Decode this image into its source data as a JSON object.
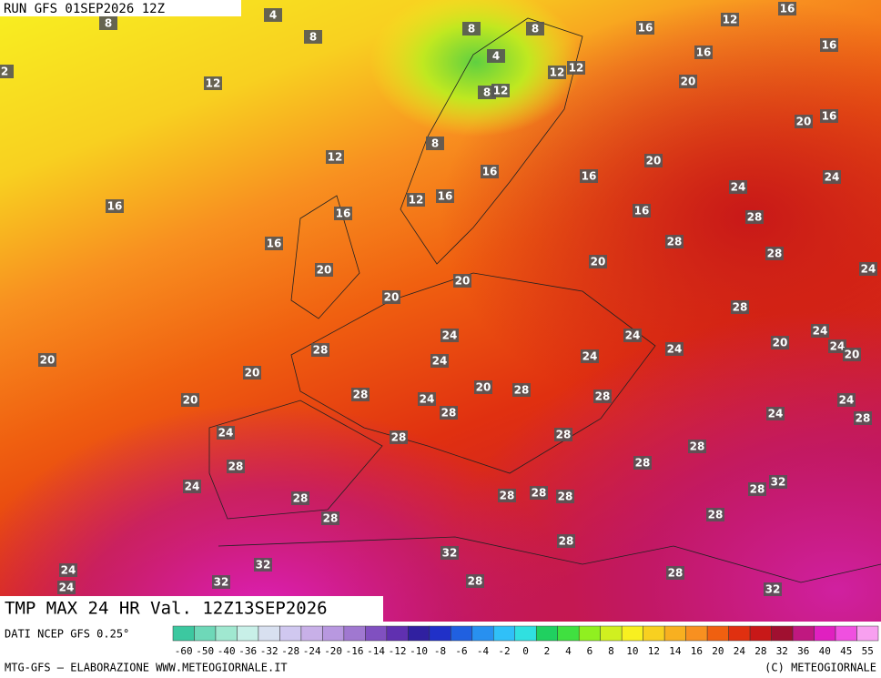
{
  "header": {
    "run": "RUN GFS 01SEP2026 12Z"
  },
  "title": "TMP MAX 24 HR Val. 12Z13SEP2026",
  "source": "DATI NCEP GFS 0.25°",
  "footer_left": "MTG-GFS — ELABORAZIONE WWW.METEOGIORNALE.IT",
  "footer_right": "(C) METEOGIORNALE",
  "colorbar": {
    "labels": [
      -60,
      -50,
      -40,
      -36,
      -32,
      -28,
      -24,
      -20,
      -16,
      -14,
      -12,
      -10,
      -8,
      -6,
      -4,
      -2,
      0,
      2,
      4,
      6,
      8,
      10,
      12,
      14,
      16,
      20,
      24,
      28,
      32,
      36,
      40,
      45,
      55
    ],
    "colors": [
      "#3cc8a0",
      "#6ed8b8",
      "#a0e8d0",
      "#c8f0e8",
      "#d8e0f0",
      "#d0c8f0",
      "#c8b0e8",
      "#b898e0",
      "#a078d0",
      "#8050c0",
      "#6030b0",
      "#3020a0",
      "#2030c8",
      "#2060e0",
      "#2890f0",
      "#30c0f8",
      "#30e0e0",
      "#20d060",
      "#40e040",
      "#90f020",
      "#d0f020",
      "#f8f020",
      "#f8d020",
      "#f8b020",
      "#f89020",
      "#f06010",
      "#e03010",
      "#c81818",
      "#a01030",
      "#c01880",
      "#e020c0",
      "#f050e0",
      "#f8a0f0"
    ]
  },
  "map_labels": [
    4,
    8,
    8,
    8,
    8,
    2,
    12,
    4,
    8,
    12,
    12,
    12,
    12,
    16,
    16,
    16,
    16,
    20,
    20,
    16,
    12,
    8,
    16,
    16,
    20,
    24,
    24,
    12,
    16,
    16,
    16,
    16,
    28,
    16,
    28,
    28,
    24,
    20,
    20,
    20,
    20,
    28,
    24,
    24,
    24,
    20,
    24,
    20,
    28,
    24,
    24,
    20,
    24,
    20,
    28,
    20,
    24,
    20,
    28,
    28,
    24,
    28,
    24,
    28,
    24,
    28,
    28,
    28,
    28,
    28,
    32,
    28,
    24,
    28,
    28,
    28,
    28,
    28,
    28,
    28,
    32,
    24,
    32,
    28,
    32,
    24,
    28,
    32
  ]
}
